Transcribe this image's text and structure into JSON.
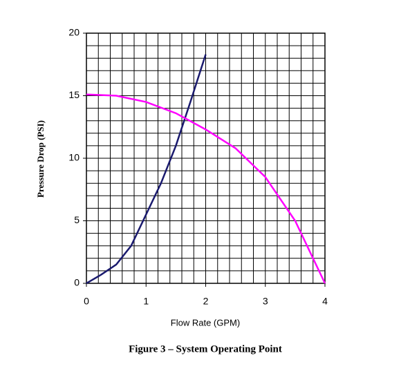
{
  "chart_data": {
    "type": "line",
    "caption": "Figure 3 – System Operating Point",
    "x_label": "Flow Rate (GPM)",
    "y_label": "Pressure Drop (PSI)",
    "xlim": [
      0,
      4
    ],
    "xticks": [
      0,
      1,
      2,
      3,
      4
    ],
    "ylim": [
      0,
      20
    ],
    "yticks": [
      0,
      5,
      10,
      15,
      20
    ],
    "grid": true,
    "series": [
      {
        "color": "#1a1a6e",
        "x": [
          0,
          0.25,
          0.5,
          0.75,
          1,
          1.25,
          1.5,
          1.75,
          2
        ],
        "values": [
          0,
          0.7,
          1.5,
          3,
          5.5,
          8,
          11,
          14.6,
          18.3
        ]
      },
      {
        "color": "#ff00ff",
        "x": [
          0,
          0.5,
          1,
          1.5,
          2,
          2.5,
          3,
          3.5,
          3.8,
          4
        ],
        "values": [
          15.1,
          15,
          14.5,
          13.6,
          12.3,
          10.8,
          8.5,
          5,
          2,
          0
        ]
      }
    ]
  }
}
